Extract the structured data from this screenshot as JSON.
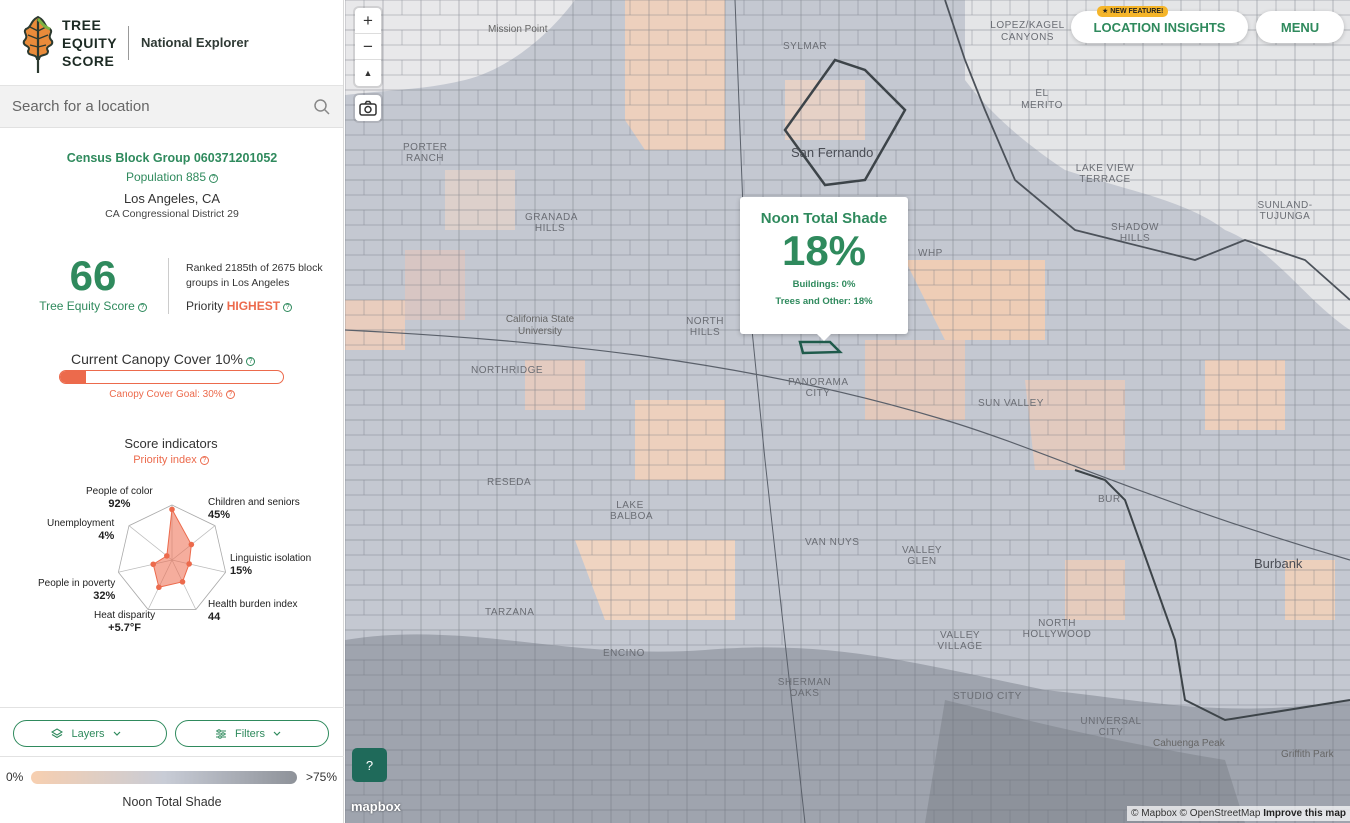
{
  "brand": {
    "wordmark_line1": "TREE",
    "wordmark_line2": "EQUITY",
    "wordmark_line3": "SCORE",
    "subtitle": "National Explorer"
  },
  "search": {
    "placeholder": "Search for a location"
  },
  "block_group": {
    "title": "Census Block Group 060371201052",
    "population_label": "Population 885",
    "city": "Los Angeles, CA",
    "district": "CA Congressional District 29"
  },
  "score": {
    "value": "66",
    "label": "Tree Equity Score",
    "rank_text": "Ranked 2185th of 2675 block groups in Los Angeles",
    "priority_label": "Priority",
    "priority_value": "HIGHEST"
  },
  "canopy": {
    "title": "Current Canopy Cover 10%",
    "current_fraction": 0.1,
    "goal_fraction": 0.3,
    "goal_label": "Canopy Cover Goal: 30%"
  },
  "indicators": {
    "title": "Score indicators",
    "subtitle": "Priority index",
    "items": [
      {
        "name": "People of color",
        "value": "92%",
        "level": 0.92
      },
      {
        "name": "Children and seniors",
        "value": "45%",
        "level": 0.45
      },
      {
        "name": "Linguistic isolation",
        "value": "15%",
        "level": 0.32
      },
      {
        "name": "Health burden index",
        "value": "44",
        "level": 0.44
      },
      {
        "name": "Heat disparity",
        "value": "+5.7°F",
        "level": 0.55
      },
      {
        "name": "People in poverty",
        "value": "32%",
        "level": 0.35
      },
      {
        "name": "Unemployment",
        "value": "4%",
        "level": 0.12
      }
    ]
  },
  "controls": {
    "layers_label": "Layers",
    "filters_label": "Filters"
  },
  "legend": {
    "min": "0%",
    "max": ">75%",
    "title": "Noon Total Shade"
  },
  "map": {
    "zoom_in": "+",
    "zoom_out": "−",
    "compass": "▲",
    "insights_badge": "★ NEW FEATURE!",
    "insights_label": "LOCATION INSIGHTS",
    "menu_label": "MENU",
    "help_label": "?",
    "mapbox_label": "mapbox",
    "attribution": "© Mapbox © OpenStreetMap",
    "improve_label": "Improve this map",
    "labels": {
      "mission_point": "Mission Point",
      "sylmar": "SYLMAR",
      "lopez_kagel": "LOPEZ/KAGEL CANYONS",
      "el_merito": "EL MERITO",
      "san_fernando": "San Fernando",
      "porter_ranch": "PORTER RANCH",
      "granada_hills": "GRANADA HILLS",
      "kagel_terrace": "LAKE VIEW TERRACE",
      "sunland": "SUNLAND-TUJUNGA",
      "shadow_hills": "SHADOW HILLS",
      "whp": "WHP",
      "csun": "California State University",
      "northridge": "NORTHRIDGE",
      "north_hills": "NORTH HILLS",
      "panorama": "PANORAMA CITY",
      "sun_valley": "SUN VALLEY",
      "reseda": "RESEDA",
      "lake_balboa": "LAKE BALBOA",
      "van_nuys": "VAN NUYS",
      "valley_glen": "VALLEY GLEN",
      "bur": "BUR",
      "burbank": "Burbank",
      "tarzana": "TARZANA",
      "encino": "ENCINO",
      "north_hollywood": "NORTH HOLLYWOOD",
      "valley_village": "VALLEY VILLAGE",
      "sherman_oaks": "SHERMAN OAKS",
      "studio_city": "STUDIO CITY",
      "universal_city": "UNIVERSAL CITY",
      "cahuenga_peak": "Cahuenga Peak",
      "griffith_park": "Griffith Park"
    }
  },
  "tooltip": {
    "title": "Noon Total Shade",
    "value": "18%",
    "buildings": "Buildings: 0%",
    "trees": "Trees and Other: 18%"
  }
}
